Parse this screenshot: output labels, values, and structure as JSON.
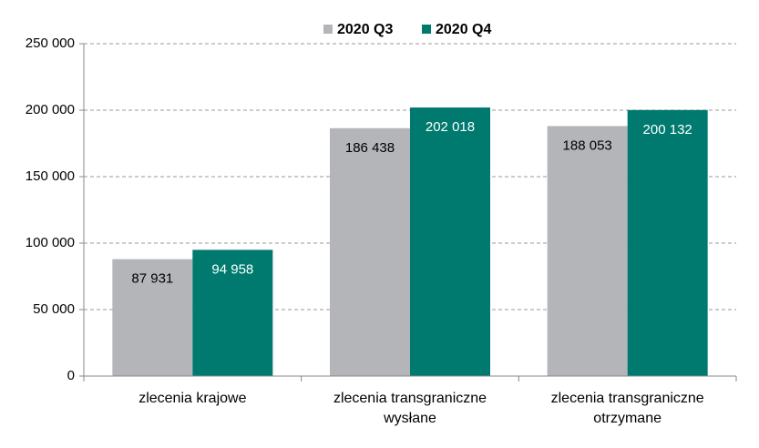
{
  "chart_data": {
    "type": "bar",
    "categories": [
      "zlecenia krajowe",
      "zlecenia transgraniczne wysłane",
      "zlecenia transgraniczne otrzymane"
    ],
    "series": [
      {
        "name": "2020 Q3",
        "color": "#b3b5b8",
        "values": [
          87931,
          186438,
          188053
        ],
        "value_labels": [
          "87 931",
          "186 438",
          "188 053"
        ]
      },
      {
        "name": "2020 Q4",
        "color": "#007a6e",
        "values": [
          94958,
          202018,
          200132
        ],
        "value_labels": [
          "94 958",
          "202 018",
          "200 132"
        ]
      }
    ],
    "ylim": [
      0,
      250000
    ],
    "yticks": [
      0,
      {
        "value": 50000,
        "label": "50 000"
      },
      {
        "value": 100000,
        "label": "100 000"
      },
      {
        "value": 150000,
        "label": "150 000"
      },
      {
        "value": 200000,
        "label": "200 000"
      },
      {
        "value": 250000,
        "label": "250 000"
      }
    ],
    "grid": true,
    "legend": "top"
  }
}
